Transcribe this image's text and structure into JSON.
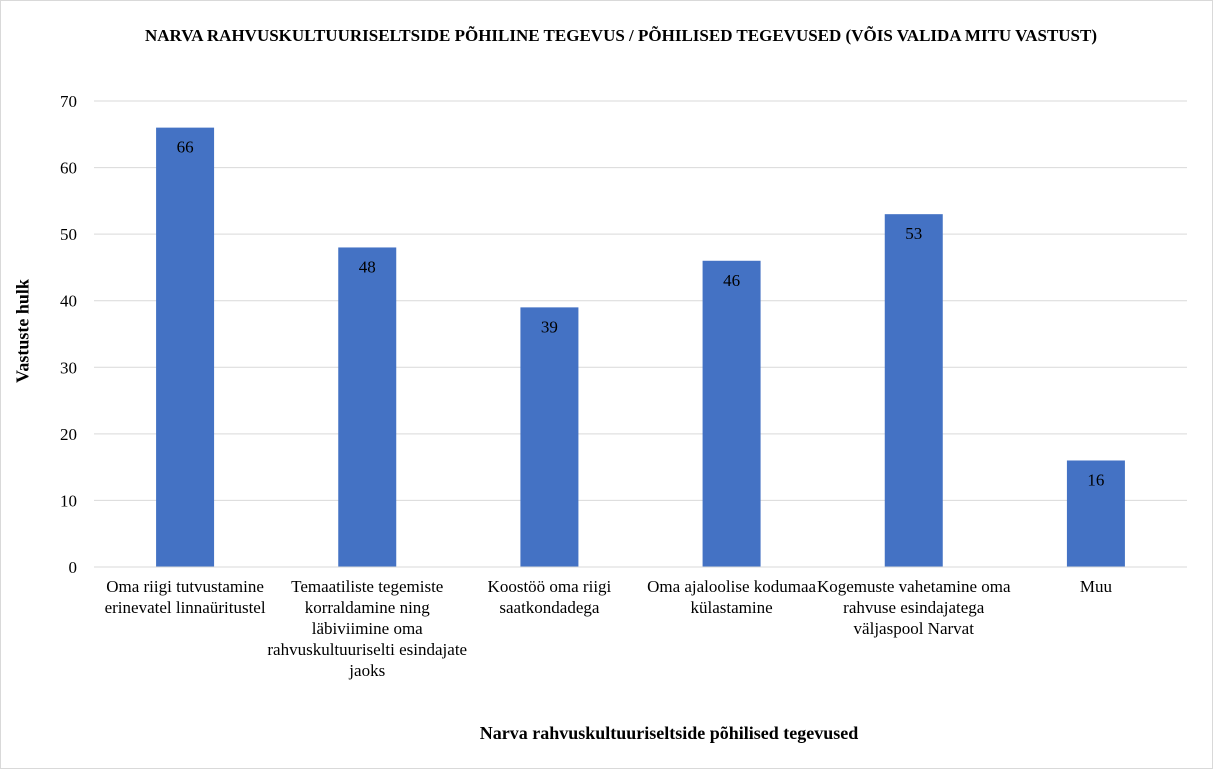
{
  "chart_data": {
    "type": "bar",
    "title": "NARVA RAHVUSKULTUURISELTSIDE PÕHILINE TEGEVUS / PÕHILISED TEGEVUSED (VÕIS VALIDA MITU VASTUST)",
    "xlabel": "Narva rahvuskultuuriseltside põhilised tegevused",
    "ylabel": "Vastuste hulk",
    "categories": [
      "Oma riigi tutvustamine erinevatel linnaüritustel",
      "Temaatiliste tegemiste korraldamine ning läbiviimine oma rahvuskultuuriselti esindajate jaoks",
      "Koostöö oma riigi saatkondadega",
      "Oma ajaloolise kodumaa külastamine",
      "Kogemuste vahetamine oma rahvuse esindajatega väljaspool Narvat",
      "Muu"
    ],
    "values": [
      66,
      48,
      39,
      46,
      53,
      16
    ],
    "ylim": [
      0,
      70
    ],
    "yticks": [
      0,
      10,
      20,
      30,
      40,
      50,
      60,
      70
    ],
    "grid": true,
    "legend": "none",
    "colors": {
      "bar": "#4472c4",
      "grid": "#d9d9d9"
    }
  }
}
